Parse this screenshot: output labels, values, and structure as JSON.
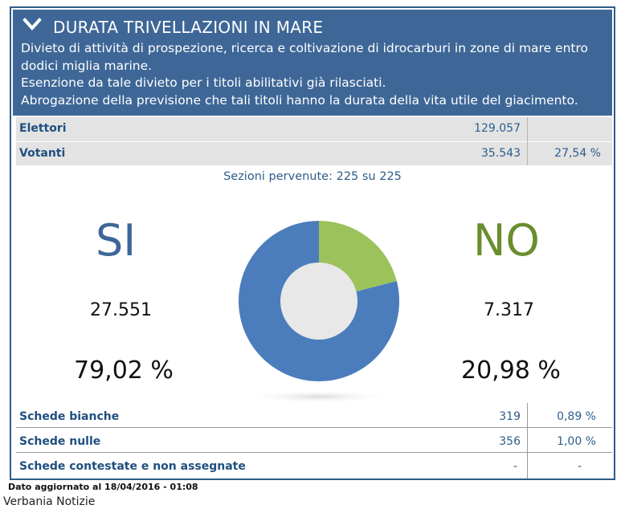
{
  "header": {
    "title": "DURATA TRIVELLAZIONI IN MARE",
    "description": [
      "Divieto di attività di prospezione, ricerca e coltivazione di idrocarburi in zone di mare entro",
      "dodici miglia marine.",
      "Esenzione da tale divieto per i titoli abilitativi già rilasciati.",
      "Abrogazione della previsione che tali titoli hanno la durata della vita utile del giacimento."
    ]
  },
  "stats": {
    "elettori": {
      "label": "Elettori",
      "value": "129.057"
    },
    "votanti": {
      "label": "Votanti",
      "value": "35.543",
      "percent": "27,54 %"
    }
  },
  "sezioni": "Sezioni pervenute: 225 su 225",
  "results": {
    "si": {
      "label": "SI",
      "count": "27.551",
      "percent": "79,02 %"
    },
    "no": {
      "label": "NO",
      "count": "7.317",
      "percent": "20,98 %"
    }
  },
  "chart_data": {
    "type": "pie",
    "labels": [
      "SI",
      "NO"
    ],
    "values": [
      79.02,
      20.98
    ],
    "colors": [
      "#4b7dbd",
      "#9cc25b"
    ],
    "hole_color": "#e8e8e8"
  },
  "schede": [
    {
      "label": "Schede bianche",
      "value": "319",
      "percent": "0,89 %"
    },
    {
      "label": "Schede nulle",
      "value": "356",
      "percent": "1,00 %"
    },
    {
      "label": "Schede contestate e non assegnate",
      "value": "-",
      "percent": "-"
    }
  ],
  "footer": {
    "updated": "Dato aggiornato al 18/04/2016 - 01:08",
    "source": "Verbania Notizie"
  },
  "colors": {
    "header_bg": "#3e6797",
    "si": "#3e6797",
    "no": "#6a8e2e",
    "stats_bg": "#e3e3e3"
  },
  "icons": {
    "collapse": "chevron-down-icon"
  }
}
